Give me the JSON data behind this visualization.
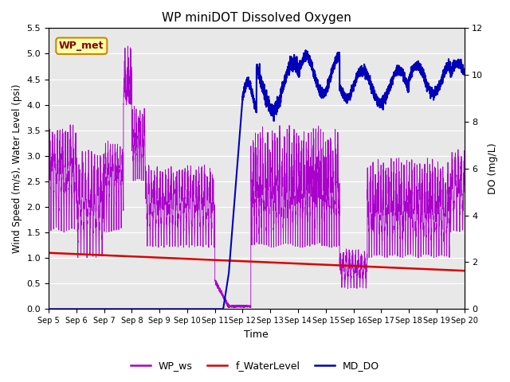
{
  "title": "WP miniDOT Dissolved Oxygen",
  "ylabel_left": "Wind Speed (m/s), Water Level (psi)",
  "ylabel_right": "DO (mg/L)",
  "xlabel": "Time",
  "ylim_left": [
    0.0,
    5.5
  ],
  "ylim_right": [
    0,
    12
  ],
  "yticks_left": [
    0.0,
    0.5,
    1.0,
    1.5,
    2.0,
    2.5,
    3.0,
    3.5,
    4.0,
    4.5,
    5.0,
    5.5
  ],
  "yticks_right": [
    0,
    2,
    4,
    6,
    8,
    10,
    12
  ],
  "bg_color": "#e8e8e8",
  "wp_ws_color": "#aa00cc",
  "f_water_color": "#dd0000",
  "md_do_color": "#0000bb",
  "legend_labels": [
    "WP_ws",
    "f_WaterLevel",
    "MD_DO"
  ],
  "annotation_text": "WP_met",
  "annotation_bg": "#ffffaa",
  "annotation_border": "#cc8800",
  "total_hours": 360,
  "n_points": 5000
}
